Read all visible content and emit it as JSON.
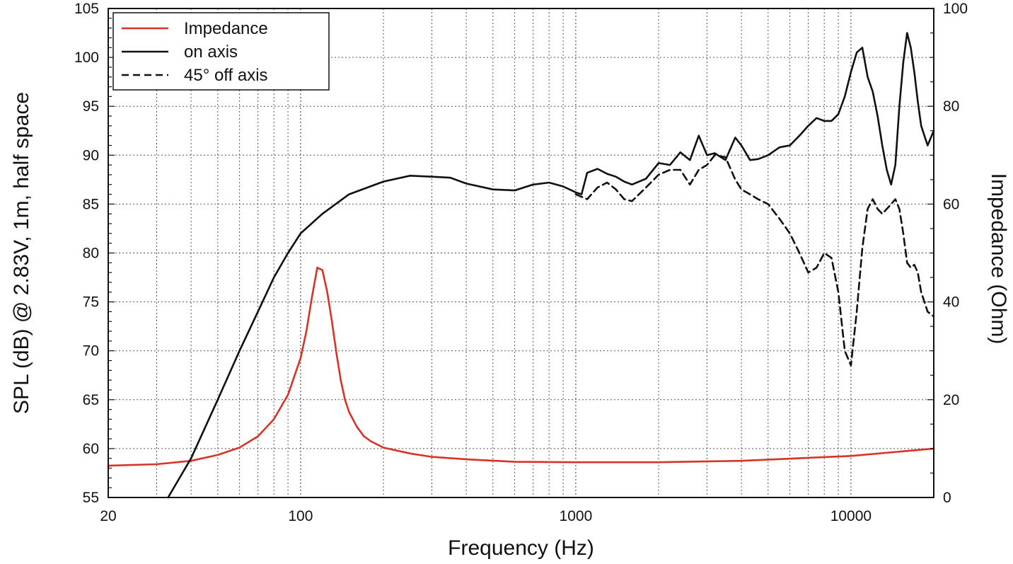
{
  "chart_data": {
    "type": "line",
    "title": "",
    "xlabel": "Frequency (Hz)",
    "ylabel": "SPL (dB) @ 2.83V, 1m, half space",
    "y2label": "Impedance (Ohm)",
    "xscale": "log",
    "xlim": [
      20,
      20000
    ],
    "ylim": [
      55,
      105
    ],
    "y2lim": [
      0,
      100
    ],
    "grid": true,
    "legend_position": "top-left",
    "x_ticks": [
      {
        "value": 20,
        "label": "20"
      },
      {
        "value": 100,
        "label": "100"
      },
      {
        "value": 1000,
        "label": "1000"
      },
      {
        "value": 10000,
        "label": "10000"
      }
    ],
    "y_ticks": [
      {
        "value": 55,
        "label": "55"
      },
      {
        "value": 60,
        "label": "60"
      },
      {
        "value": 65,
        "label": "65"
      },
      {
        "value": 70,
        "label": "70"
      },
      {
        "value": 75,
        "label": "75"
      },
      {
        "value": 80,
        "label": "80"
      },
      {
        "value": 85,
        "label": "85"
      },
      {
        "value": 90,
        "label": "90"
      },
      {
        "value": 95,
        "label": "95"
      },
      {
        "value": 100,
        "label": "100"
      },
      {
        "value": 105,
        "label": "105"
      }
    ],
    "y2_ticks": [
      {
        "value": 0,
        "label": "0"
      },
      {
        "value": 20,
        "label": "20"
      },
      {
        "value": 40,
        "label": "40"
      },
      {
        "value": 60,
        "label": "60"
      },
      {
        "value": 80,
        "label": "80"
      },
      {
        "value": 100,
        "label": "100"
      }
    ],
    "series": [
      {
        "name": "Impedance",
        "axis": "right",
        "color": "#d93227",
        "style": "solid",
        "x": [
          20,
          30,
          40,
          50,
          60,
          70,
          80,
          90,
          100,
          105,
          110,
          115,
          120,
          125,
          130,
          135,
          140,
          145,
          150,
          160,
          170,
          180,
          200,
          250,
          300,
          400,
          600,
          1000,
          2000,
          4000,
          10000,
          20000
        ],
        "y": [
          6.5,
          6.8,
          7.5,
          8.7,
          10.2,
          12.5,
          16.0,
          21.0,
          28.5,
          34.0,
          41.0,
          47.0,
          46.5,
          42.0,
          36.0,
          29.5,
          24.0,
          20.0,
          17.5,
          14.5,
          12.5,
          11.5,
          10.2,
          9.0,
          8.3,
          7.8,
          7.3,
          7.2,
          7.2,
          7.5,
          8.5,
          10.0
        ]
      },
      {
        "name": "on axis",
        "axis": "left",
        "color": "#111111",
        "style": "solid",
        "x": [
          33,
          40,
          50,
          60,
          70,
          80,
          90,
          100,
          120,
          150,
          200,
          250,
          300,
          350,
          400,
          500,
          600,
          700,
          800,
          900,
          1000,
          1050,
          1100,
          1200,
          1300,
          1400,
          1500,
          1600,
          1800,
          2000,
          2200,
          2400,
          2600,
          2800,
          3000,
          3200,
          3500,
          3800,
          4000,
          4300,
          4600,
          5000,
          5500,
          6000,
          6500,
          7000,
          7500,
          8000,
          8500,
          9000,
          9500,
          10000,
          10500,
          11000,
          11500,
          12000,
          12500,
          13000,
          13500,
          14000,
          14500,
          15000,
          15500,
          16000,
          16500,
          17000,
          17500,
          18000,
          19000,
          20000
        ],
        "y": [
          55.0,
          59.0,
          65.0,
          70.0,
          74.0,
          77.5,
          80.0,
          82.0,
          84.0,
          86.0,
          87.3,
          87.9,
          87.8,
          87.7,
          87.1,
          86.5,
          86.4,
          87.0,
          87.2,
          86.8,
          86.2,
          86.0,
          88.2,
          88.6,
          88.1,
          87.8,
          87.3,
          87.0,
          87.6,
          89.2,
          89.0,
          90.3,
          89.5,
          92.0,
          90.0,
          90.2,
          89.5,
          91.8,
          91.0,
          89.5,
          89.6,
          90.0,
          90.8,
          91.0,
          92.0,
          93.0,
          93.8,
          93.5,
          93.5,
          94.2,
          96.0,
          98.5,
          100.5,
          101.0,
          98.0,
          96.5,
          94.0,
          91.0,
          88.5,
          87.0,
          89.0,
          95.0,
          99.5,
          102.5,
          101.0,
          98.5,
          95.5,
          93.0,
          91.0,
          92.5
        ]
      },
      {
        "name": "45° off axis",
        "axis": "left",
        "color": "#111111",
        "style": "dashed",
        "x": [
          1000,
          1100,
          1200,
          1300,
          1400,
          1500,
          1600,
          1800,
          2000,
          2200,
          2400,
          2600,
          2800,
          3000,
          3200,
          3500,
          3800,
          4000,
          4300,
          4600,
          5000,
          5500,
          6000,
          6500,
          7000,
          7500,
          8000,
          8500,
          9000,
          9500,
          10000,
          10500,
          11000,
          11500,
          12000,
          12500,
          13000,
          13500,
          14000,
          14500,
          15000,
          15500,
          16000,
          16500,
          17000,
          17500,
          18000,
          19000,
          20000
        ],
        "y": [
          86.0,
          85.5,
          86.7,
          87.2,
          86.5,
          85.5,
          85.3,
          86.7,
          88.0,
          88.5,
          88.5,
          87.0,
          88.5,
          89.0,
          90.0,
          89.8,
          87.5,
          86.5,
          86.0,
          85.5,
          85.0,
          83.5,
          82.0,
          80.0,
          78.0,
          78.5,
          80.0,
          79.5,
          76.0,
          70.0,
          68.5,
          74.0,
          80.5,
          84.5,
          85.5,
          84.5,
          84.0,
          84.5,
          85.0,
          85.5,
          84.5,
          82.0,
          79.0,
          78.5,
          78.8,
          78.0,
          76.0,
          74.0,
          73.5
        ]
      }
    ]
  }
}
